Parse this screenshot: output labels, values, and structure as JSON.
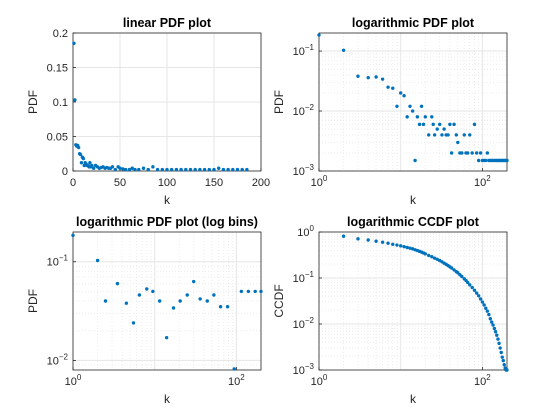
{
  "colors": {
    "marker": "#0072bd",
    "grid": "#e6e6e6",
    "axis": "#262626",
    "background": "#ffffff"
  },
  "chart_data": [
    {
      "type": "scatter",
      "title": "linear PDF plot",
      "xlabel": "k",
      "ylabel": "PDF",
      "xscale": "linear",
      "yscale": "linear",
      "xlim": [
        0,
        200
      ],
      "ylim": [
        0,
        0.2
      ],
      "grid": true,
      "x_ticks": [
        0,
        50,
        100,
        150,
        200
      ],
      "x_tick_labels": [
        "0",
        "50",
        "100",
        "150",
        "200"
      ],
      "y_ticks": [
        0,
        0.05,
        0.1,
        0.15,
        0.2
      ],
      "y_tick_labels": [
        "0",
        "0.05",
        "0.1",
        "0.15",
        "0.2"
      ],
      "points": {
        "x": [
          1,
          2,
          3,
          4,
          5,
          6,
          7,
          8,
          9,
          10,
          11,
          12,
          13,
          14,
          15,
          16,
          17,
          18,
          19,
          20,
          22,
          24,
          26,
          28,
          30,
          32,
          34,
          36,
          38,
          40,
          42,
          45,
          48,
          50,
          53,
          56,
          60,
          63,
          66,
          70,
          75,
          80,
          85,
          90,
          95,
          100,
          105,
          110,
          115,
          120,
          125,
          130,
          135,
          140,
          145,
          150,
          155,
          160,
          165,
          170,
          175,
          180,
          185
        ],
        "y": [
          0.185,
          0.103,
          0.038,
          0.036,
          0.037,
          0.034,
          0.025,
          0.024,
          0.012,
          0.02,
          0.018,
          0.008,
          0.012,
          0.01,
          0.008,
          0.008,
          0.006,
          0.012,
          0.006,
          0.008,
          0.004,
          0.008,
          0.006,
          0.004,
          0.005,
          0.006,
          0.004,
          0.005,
          0.004,
          0.004,
          0.006,
          0.002,
          0.006,
          0.004,
          0.003,
          0.002,
          0.002,
          0.004,
          0.002,
          0.002,
          0.004,
          0.002,
          0.006,
          0.002,
          0.002,
          0.002,
          0.002,
          0.002,
          0.002,
          0.002,
          0.002,
          0.002,
          0.002,
          0.002,
          0.002,
          0.002,
          0.004,
          0.002,
          0.002,
          0.002,
          0.002,
          0.002,
          0.002
        ]
      }
    },
    {
      "type": "scatter",
      "title": "logarithmic PDF plot",
      "xlabel": "k",
      "ylabel": "PDF",
      "xscale": "log",
      "yscale": "log",
      "xlim": [
        1,
        200
      ],
      "ylim": [
        0.001,
        0.2
      ],
      "grid": true,
      "x_ticks": [
        1,
        100
      ],
      "x_tick_labels": [
        "10^0",
        "10^2"
      ],
      "y_ticks": [
        0.001,
        0.01,
        0.1
      ],
      "y_tick_labels": [
        "10^-3",
        "10^-2",
        "10^-1"
      ],
      "points": {
        "x": [
          1,
          2,
          3,
          4,
          5,
          6,
          7,
          8,
          9,
          10,
          11,
          12,
          13,
          14,
          15,
          16,
          17,
          18,
          19,
          20,
          22,
          24,
          25,
          26,
          28,
          30,
          32,
          34,
          36,
          38,
          40,
          42,
          45,
          48,
          50,
          53,
          56,
          60,
          63,
          66,
          70,
          75,
          80,
          85,
          90,
          95,
          100,
          105,
          110,
          115,
          120,
          125,
          130,
          135,
          140,
          145,
          150,
          155,
          160,
          165,
          170,
          175,
          180,
          185,
          190,
          195,
          200
        ],
        "y": [
          0.185,
          0.103,
          0.038,
          0.036,
          0.037,
          0.034,
          0.025,
          0.024,
          0.012,
          0.02,
          0.018,
          0.008,
          0.012,
          0.01,
          0.0015,
          0.008,
          0.006,
          0.012,
          0.006,
          0.008,
          0.004,
          0.008,
          0.006,
          0.004,
          0.005,
          0.006,
          0.004,
          0.005,
          0.004,
          0.004,
          0.006,
          0.002,
          0.006,
          0.004,
          0.003,
          0.002,
          0.002,
          0.004,
          0.002,
          0.002,
          0.004,
          0.002,
          0.006,
          0.002,
          0.0015,
          0.002,
          0.0015,
          0.0015,
          0.0015,
          0.002,
          0.0015,
          0.0015,
          0.0015,
          0.0015,
          0.0015,
          0.0015,
          0.0015,
          0.0015,
          0.0015,
          0.0015,
          0.0015,
          0.0015,
          0.0015,
          0.0015,
          0.0015,
          0.0015,
          0.0015
        ]
      }
    },
    {
      "type": "scatter",
      "title": "logarithmic PDF plot (log bins)",
      "xlabel": "k",
      "ylabel": "PDF",
      "xscale": "log",
      "yscale": "log",
      "xlim": [
        1,
        200
      ],
      "ylim": [
        0.008,
        0.2
      ],
      "grid": true,
      "x_ticks": [
        1,
        100
      ],
      "x_tick_labels": [
        "10^0",
        "10^2"
      ],
      "y_ticks": [
        0.01,
        0.1
      ],
      "y_tick_labels": [
        "10^-2",
        "10^-1"
      ],
      "points": {
        "x": [
          1,
          2,
          2.5,
          3.5,
          4.5,
          5.5,
          6.5,
          8,
          9.5,
          11.5,
          14,
          17,
          20.5,
          25,
          30,
          36,
          44,
          53,
          64,
          78,
          94,
          115,
          140,
          170,
          200
        ],
        "y": [
          0.185,
          0.103,
          0.04,
          0.06,
          0.038,
          0.024,
          0.046,
          0.053,
          0.05,
          0.04,
          0.017,
          0.034,
          0.04,
          0.046,
          0.063,
          0.042,
          0.04,
          0.046,
          0.035,
          0.035,
          0.0082,
          0.05,
          0.05,
          0.05,
          0.05
        ]
      }
    },
    {
      "type": "scatter",
      "title": "logarithmic CCDF plot",
      "xlabel": "k",
      "ylabel": "CCDF",
      "xscale": "log",
      "yscale": "log",
      "xlim": [
        1,
        200
      ],
      "ylim": [
        0.001,
        1
      ],
      "grid": true,
      "x_ticks": [
        1,
        100
      ],
      "x_tick_labels": [
        "10^0",
        "10^2"
      ],
      "y_ticks": [
        0.001,
        0.01,
        0.1,
        1
      ],
      "y_tick_labels": [
        "10^-3",
        "10^-2",
        "10^-1",
        "10^0"
      ],
      "points": {
        "x": [
          2,
          3,
          4,
          5,
          6,
          7,
          8,
          9,
          10,
          11,
          12,
          13,
          14,
          15,
          16,
          17,
          18,
          19,
          20,
          22,
          24,
          26,
          28,
          30,
          32,
          34,
          36,
          38,
          40,
          42,
          45,
          48,
          50,
          53,
          56,
          60,
          63,
          66,
          70,
          75,
          80,
          85,
          90,
          95,
          100,
          105,
          110,
          115,
          120,
          125,
          130,
          135,
          140,
          145,
          150,
          155,
          160,
          165,
          170,
          175,
          180,
          185,
          190,
          195,
          200
        ],
        "y": [
          0.81,
          0.71,
          0.67,
          0.63,
          0.6,
          0.57,
          0.54,
          0.52,
          0.5,
          0.48,
          0.46,
          0.445,
          0.43,
          0.41,
          0.395,
          0.38,
          0.365,
          0.35,
          0.335,
          0.31,
          0.29,
          0.27,
          0.255,
          0.24,
          0.225,
          0.21,
          0.198,
          0.186,
          0.175,
          0.165,
          0.15,
          0.137,
          0.13,
          0.118,
          0.108,
          0.096,
          0.088,
          0.08,
          0.071,
          0.062,
          0.054,
          0.047,
          0.041,
          0.035,
          0.03,
          0.026,
          0.022,
          0.019,
          0.016,
          0.013,
          0.011,
          0.0095,
          0.008,
          0.0068,
          0.0057,
          0.0047,
          0.0038,
          0.003,
          0.0024,
          0.0019,
          0.0016,
          0.0013,
          0.0011,
          0.001,
          0.001
        ]
      }
    }
  ]
}
